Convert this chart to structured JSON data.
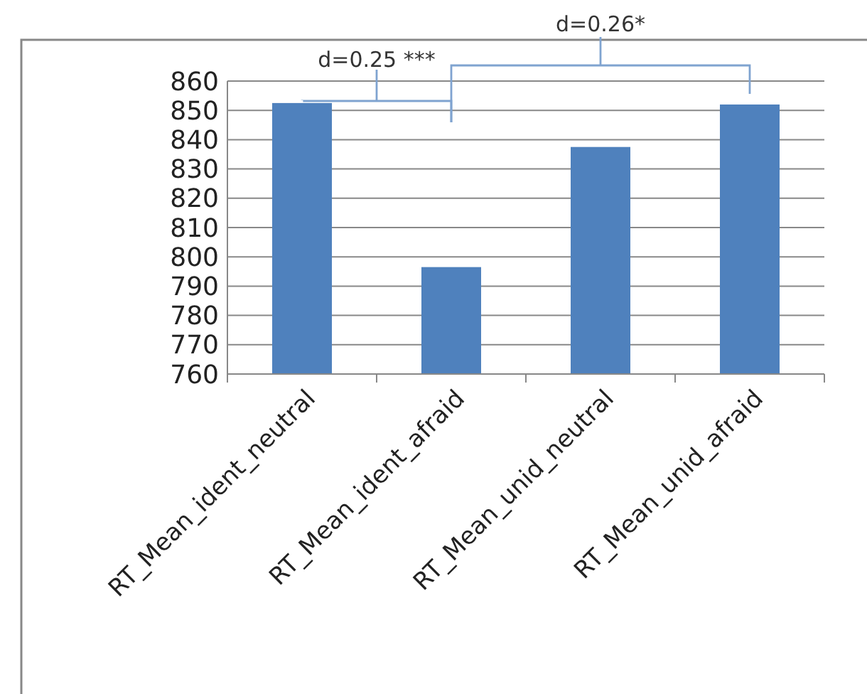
{
  "chart_data": {
    "type": "bar",
    "categories": [
      "RT_Mean_ident_neutral",
      "RT_Mean_ident_afraid",
      "RT_Mean_unid_neutral",
      "RT_Mean_unid_afraid"
    ],
    "values": [
      852.5,
      796.5,
      837.5,
      852
    ],
    "color": "#4f81bd",
    "ylim": [
      760,
      860
    ],
    "yticks": [
      760,
      770,
      780,
      790,
      800,
      810,
      820,
      830,
      840,
      850,
      860
    ],
    "grid": "y",
    "annotations": [
      "d=0.25 ***",
      "d=0.26*"
    ]
  }
}
